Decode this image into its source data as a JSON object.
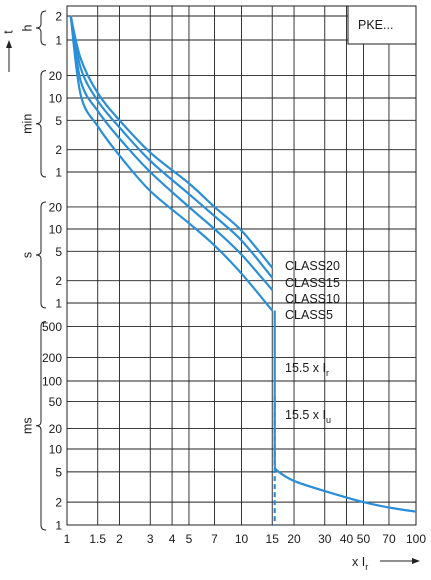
{
  "chart_data": {
    "type": "line",
    "title": "PKE...",
    "xscale": "log",
    "xlim": [
      1,
      100
    ],
    "x_ticks": [
      "1",
      "1.5",
      "2",
      "3",
      "4",
      "5",
      "7",
      "10",
      "15",
      "20",
      "30",
      "40",
      "50",
      "70",
      "100"
    ],
    "xlabel": "x Ir",
    "ylabel": "t",
    "y_groups": [
      {
        "unit": "h",
        "ticks": [
          "2",
          "1"
        ]
      },
      {
        "unit": "min",
        "ticks": [
          "20",
          "10",
          "5",
          "2",
          "1"
        ]
      },
      {
        "unit": "s",
        "ticks": [
          "20",
          "10",
          "5",
          "2",
          "1"
        ]
      },
      {
        "unit": "ms",
        "ticks": [
          "500",
          "200",
          "100",
          "50",
          "20",
          "10",
          "5",
          "2",
          "1"
        ]
      }
    ],
    "series": [
      {
        "name": "CLASS20",
        "x": [
          1.05,
          1.2,
          1.5,
          2,
          3,
          5,
          7,
          10,
          15
        ],
        "t_seconds": [
          7200,
          2000,
          700,
          300,
          110,
          42,
          20,
          9.5,
          3
        ]
      },
      {
        "name": "CLASS15",
        "x": [
          1.05,
          1.2,
          1.5,
          2,
          3,
          5,
          7,
          10,
          15
        ],
        "t_seconds": [
          7200,
          1500,
          550,
          240,
          85,
          30,
          15,
          7,
          2.2
        ]
      },
      {
        "name": "CLASS10",
        "x": [
          1.05,
          1.2,
          1.5,
          2,
          3,
          5,
          7,
          10,
          15
        ],
        "t_seconds": [
          7200,
          1000,
          400,
          170,
          60,
          20,
          10,
          4.5,
          1.5
        ]
      },
      {
        "name": "CLASS5",
        "x": [
          1.05,
          1.2,
          1.5,
          2,
          3,
          5,
          7,
          10,
          15
        ],
        "t_seconds": [
          7200,
          650,
          250,
          100,
          33,
          12,
          6,
          2.5,
          0.8
        ]
      },
      {
        "name": "15.5 x Ir",
        "x": [
          15.5,
          15.5
        ],
        "t_seconds": [
          0.8,
          0.006
        ]
      },
      {
        "name": "15.5 x Iu",
        "x": [
          15.5,
          15.5
        ],
        "t_seconds": [
          0.06,
          0.001
        ]
      },
      {
        "name": "",
        "x": [
          15.5,
          16,
          20,
          30,
          50,
          70,
          100
        ],
        "t_seconds": [
          0.006,
          0.0052,
          0.0038,
          0.0028,
          0.002,
          0.0017,
          0.0015
        ]
      }
    ],
    "annotations": [
      "CLASS20",
      "CLASS15",
      "CLASS10",
      "CLASS5",
      "15.5 x Ir",
      "15.5 x Iu"
    ],
    "line_color": "#2a8fd8",
    "grid": true
  }
}
